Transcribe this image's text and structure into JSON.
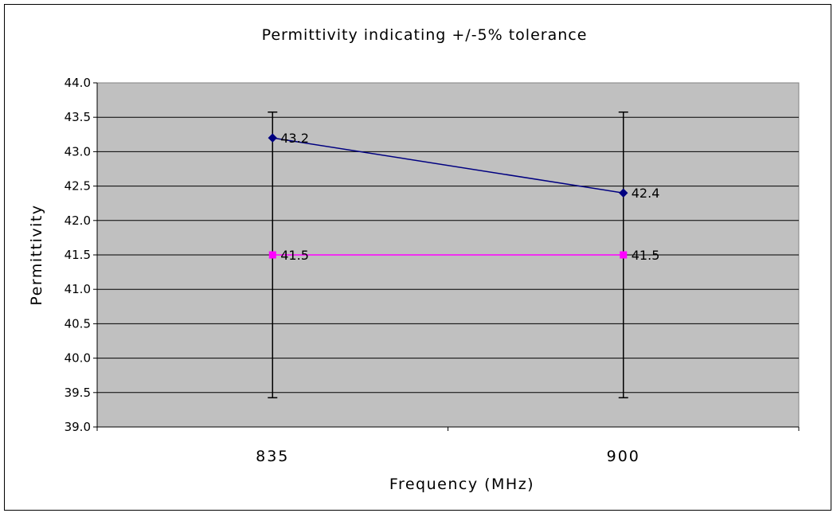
{
  "chart_data": {
    "type": "line",
    "title": "Permittivity indicating +/-5% tolerance",
    "xlabel": "Frequency (MHz)",
    "ylabel": "Permittivity",
    "categories": [
      "835",
      "900"
    ],
    "ylim": [
      39.0,
      44.0
    ],
    "y_ticks": [
      "39.0",
      "39.5",
      "40.0",
      "40.5",
      "41.0",
      "41.5",
      "42.0",
      "42.5",
      "43.0",
      "43.5",
      "44.0"
    ],
    "grid": true,
    "legend": "none",
    "plot_background": "#c0c0c0",
    "series": [
      {
        "values": [
          43.2,
          42.4
        ],
        "labels": [
          "43.2",
          "42.4"
        ],
        "color": "#000080",
        "marker": "diamond"
      },
      {
        "values": [
          41.5,
          41.5
        ],
        "labels": [
          "41.5",
          "41.5"
        ],
        "color": "#ff00ff",
        "marker": "square",
        "error_bar_percent": 5
      }
    ]
  }
}
